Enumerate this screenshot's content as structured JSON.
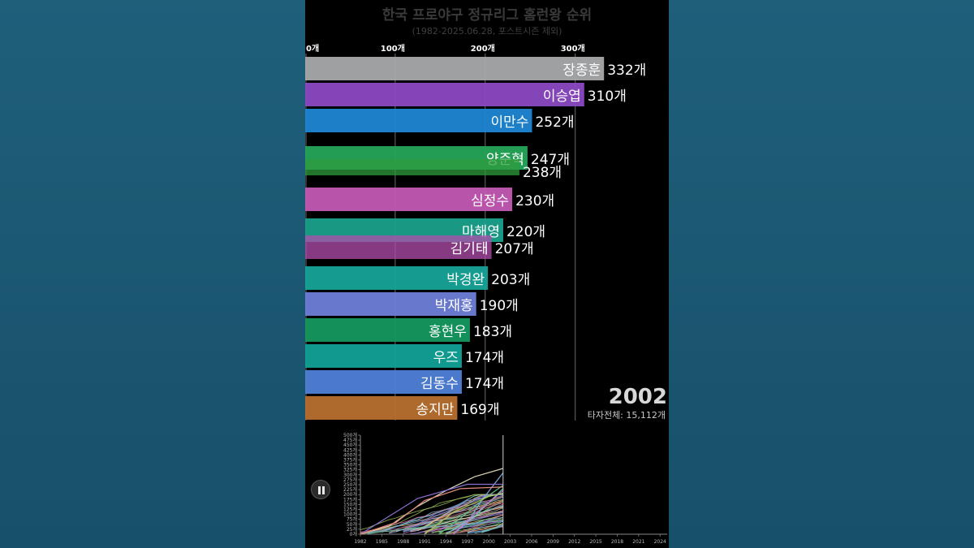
{
  "chart_data": [
    {
      "type": "bar",
      "title": "한국 프로야구 정규리그 홈런왕 순위",
      "subtitle": "(1982-2025.06.28, 포스트시즌 제외)",
      "xlim": [
        0,
        332
      ],
      "x_ticks": [
        "0개",
        "100개",
        "200개",
        "300개"
      ],
      "x_tick_values": [
        0,
        100,
        200,
        300
      ],
      "unit_suffix": "개",
      "current_year": "2002",
      "total_label": "타자전체: 15,112개",
      "bars": [
        {
          "name": "장종훈",
          "value": 332,
          "value_label": "332개",
          "color": "#a7a9aa"
        },
        {
          "name": "이승엽",
          "value": 310,
          "value_label": "310개",
          "color": "#8a49c2"
        },
        {
          "name": "이만수",
          "value": 252,
          "value_label": "252개",
          "color": "#1f86d3"
        },
        {
          "name": "양준혁",
          "value": 247,
          "value_label": "247개",
          "color": "#25a558"
        },
        {
          "name": "",
          "value": 238,
          "value_label": "238개",
          "color": "#2f9c3e"
        },
        {
          "name": "심정수",
          "value": 230,
          "value_label": "230개",
          "color": "#c25ab3"
        },
        {
          "name": "마해영",
          "value": 220,
          "value_label": "220개",
          "color": "#1aa08b"
        },
        {
          "name": "김기태",
          "value": 207,
          "value_label": "207개",
          "color": "#b24eae"
        },
        {
          "name": "박경완",
          "value": 203,
          "value_label": "203개",
          "color": "#17a398"
        },
        {
          "name": "박재홍",
          "value": 190,
          "value_label": "190개",
          "color": "#6e7ed8"
        },
        {
          "name": "홍현우",
          "value": 183,
          "value_label": "183개",
          "color": "#15995f"
        },
        {
          "name": "우즈",
          "value": 174,
          "value_label": "174개",
          "color": "#11a196"
        },
        {
          "name": "김동수",
          "value": 174,
          "value_label": "174개",
          "color": "#4f7fd6"
        },
        {
          "name": "송지만",
          "value": 169,
          "value_label": "169개",
          "color": "#b7702f"
        }
      ]
    },
    {
      "type": "line",
      "x_range": [
        1982,
        2025
      ],
      "x_ticks": [
        "1982",
        "1985",
        "1988",
        "1991",
        "1994",
        "1997",
        "2000",
        "2003",
        "2006",
        "2009",
        "2012",
        "2015",
        "2018",
        "2021",
        "2024"
      ],
      "ylim": [
        0,
        500
      ],
      "y_ticks": [
        "0개",
        "25개",
        "50개",
        "75개",
        "100개",
        "125개",
        "150개",
        "175개",
        "200개",
        "225개",
        "250개",
        "275개",
        "300개",
        "325개",
        "350개",
        "375개",
        "400개",
        "425개",
        "450개",
        "475개",
        "500개"
      ],
      "current_year": 2002,
      "series_colors": [
        "#d9d3b8",
        "#7fa8e6",
        "#8a6fd1",
        "#5fbf7f",
        "#e08b7c",
        "#6fc7c1",
        "#c27ad0",
        "#a9c95f",
        "#e6b25f",
        "#5f8fd9",
        "#d96f9a",
        "#8fd9a6",
        "#b58f5f",
        "#7fd0e6"
      ],
      "leader_series": [
        {
          "points": [
            [
              1982,
              0
            ],
            [
              1986,
              40
            ],
            [
              1990,
              140
            ],
            [
              1994,
              220
            ],
            [
              1998,
              290
            ],
            [
              2002,
              332
            ]
          ]
        },
        {
          "points": [
            [
              1995,
              0
            ],
            [
              1997,
              60
            ],
            [
              1999,
              170
            ],
            [
              2002,
              310
            ]
          ]
        },
        {
          "points": [
            [
              1982,
              0
            ],
            [
              1986,
              90
            ],
            [
              1990,
              180
            ],
            [
              1997,
              252
            ],
            [
              2002,
              252
            ]
          ]
        },
        {
          "points": [
            [
              1993,
              0
            ],
            [
              1996,
              80
            ],
            [
              1999,
              170
            ],
            [
              2002,
              247
            ]
          ]
        },
        {
          "points": [
            [
              1982,
              0
            ],
            [
              1987,
              60
            ],
            [
              1991,
              170
            ],
            [
              1996,
              230
            ],
            [
              2002,
              238
            ]
          ]
        },
        {
          "points": [
            [
              1994,
              0
            ],
            [
              1998,
              90
            ],
            [
              2002,
              230
            ]
          ]
        },
        {
          "points": [
            [
              1995,
              0
            ],
            [
              1998,
              100
            ],
            [
              2002,
              220
            ]
          ]
        },
        {
          "points": [
            [
              1991,
              0
            ],
            [
              1995,
              110
            ],
            [
              2000,
              190
            ],
            [
              2002,
              207
            ]
          ]
        }
      ]
    }
  ]
}
